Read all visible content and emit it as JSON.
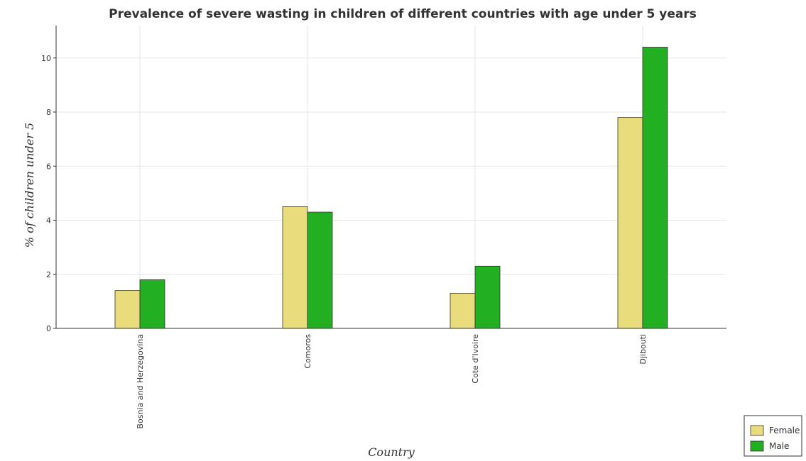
{
  "chart_data": {
    "type": "bar",
    "title": "Prevalence of severe wasting in children of different countries with age under 5 years",
    "xlabel": "Country",
    "ylabel": "% of children under 5",
    "categories": [
      "Bosnia and Herzegovina",
      "Comoros",
      "Cote d'Ivoire",
      "Djibouti"
    ],
    "series": [
      {
        "name": "Female",
        "values": [
          1.4,
          4.5,
          1.3,
          7.8
        ],
        "color": "#e8dc7c"
      },
      {
        "name": "Male",
        "values": [
          1.8,
          4.3,
          2.3,
          10.4
        ],
        "color": "#22b022"
      }
    ],
    "ylim": [
      0,
      11.2
    ],
    "yticks": [
      "0",
      "2",
      "4",
      "6",
      "8",
      "10"
    ],
    "grid": true,
    "legend_position": "bottom-right"
  }
}
